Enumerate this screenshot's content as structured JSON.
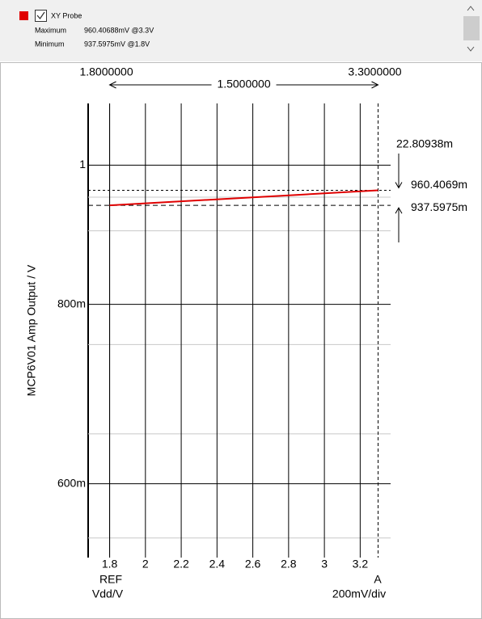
{
  "legend": {
    "name": "XY Probe",
    "max_label": "Maximum",
    "max_value": "960.40688mV @3.3V",
    "min_label": "Minimum",
    "min_value": "937.5975mV @1.8V"
  },
  "chart_data": {
    "type": "line",
    "y_label": "MCP6V01 Amp Output / V",
    "x_ref_label": "REF",
    "x_unit_label": "Vdd/V",
    "y_ref_label": "A",
    "y_scale_label": "200mV/div",
    "x": [
      1.8,
      3.3
    ],
    "series": [
      {
        "name": "XY Probe",
        "color": "#e00000",
        "values": [
          0.9375975,
          0.96040688
        ]
      }
    ],
    "xlim": [
      1.68,
      3.37
    ],
    "xticks": [
      1.8,
      2,
      2.2,
      2.4,
      2.6,
      2.8,
      3,
      3.2
    ],
    "ylim": [
      0.533,
      1.104
    ],
    "log_y": true,
    "yticks": [
      {
        "value": 1,
        "label": "1"
      },
      {
        "value": 0.8,
        "label": "800m"
      },
      {
        "value": 0.6,
        "label": "600m"
      }
    ],
    "yminor_ticks": [
      0.95,
      0.9,
      0.75,
      0.65,
      0.55
    ],
    "grid": true,
    "cursors": {
      "x": [
        1.8,
        3.3
      ],
      "x_labels": [
        "1.8000000",
        "3.3000000"
      ],
      "dx_label": "1.5000000",
      "y": [
        0.9604069,
        0.9375975
      ],
      "y_labels": [
        "960.4069m",
        "937.5975m"
      ],
      "dy_label": "22.80938m"
    }
  }
}
